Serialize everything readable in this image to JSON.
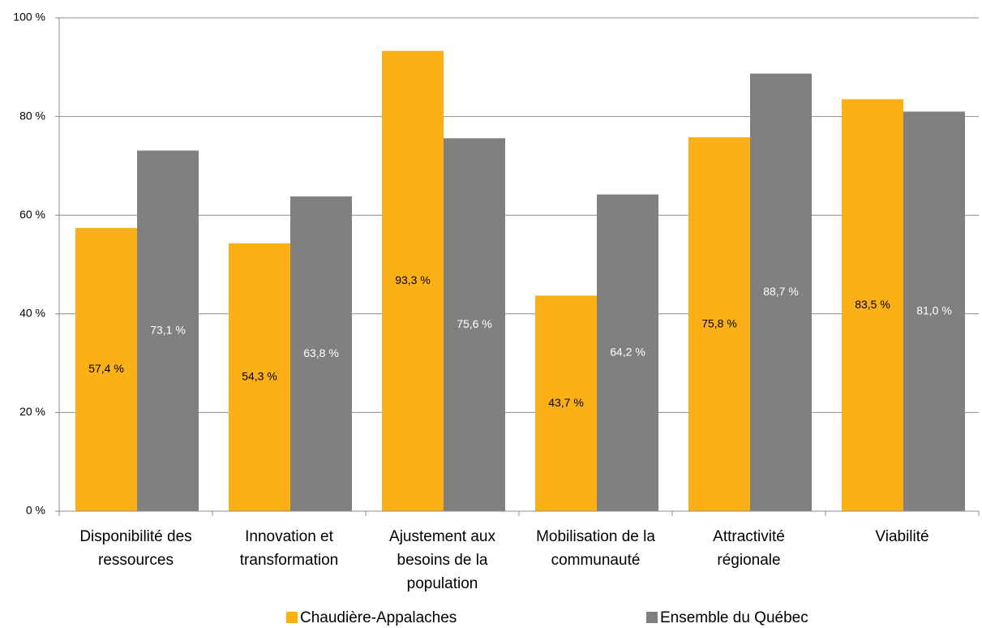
{
  "chart_data": {
    "type": "bar",
    "categories": [
      [
        "Disponibilité des",
        "ressources"
      ],
      [
        "Innovation et",
        "transformation"
      ],
      [
        "Ajustement aux",
        "besoins de la",
        "population"
      ],
      [
        "Mobilisation de la",
        "communauté"
      ],
      [
        "Attractivité",
        "régionale"
      ],
      [
        "Viabilité"
      ]
    ],
    "series": [
      {
        "name": "Chaudière-Appalaches",
        "color": "#fbb116",
        "label_color": "#000000",
        "values": [
          57.4,
          54.3,
          93.3,
          43.7,
          75.8,
          83.5
        ],
        "value_labels": [
          "57,4 %",
          "54,3 %",
          "93,3 %",
          "43,7 %",
          "75,8 %",
          "83,5 %"
        ]
      },
      {
        "name": "Ensemble du Québec",
        "color": "#808080",
        "label_color": "#ffffff",
        "values": [
          73.1,
          63.8,
          75.6,
          64.2,
          88.7,
          81.0
        ],
        "value_labels": [
          "73,1 %",
          "63,8 %",
          "75,6 %",
          "64,2 %",
          "88,7 %",
          "81,0 %"
        ]
      }
    ],
    "ylim": [
      0,
      100
    ],
    "yticks": [
      {
        "value": 0,
        "label": "0 %"
      },
      {
        "value": 20,
        "label": "20 %"
      },
      {
        "value": 40,
        "label": "40 %"
      },
      {
        "value": 60,
        "label": "60 %"
      },
      {
        "value": 80,
        "label": "80 %"
      },
      {
        "value": 100,
        "label": "100 %"
      }
    ],
    "grid": true,
    "legend": "bottom"
  }
}
